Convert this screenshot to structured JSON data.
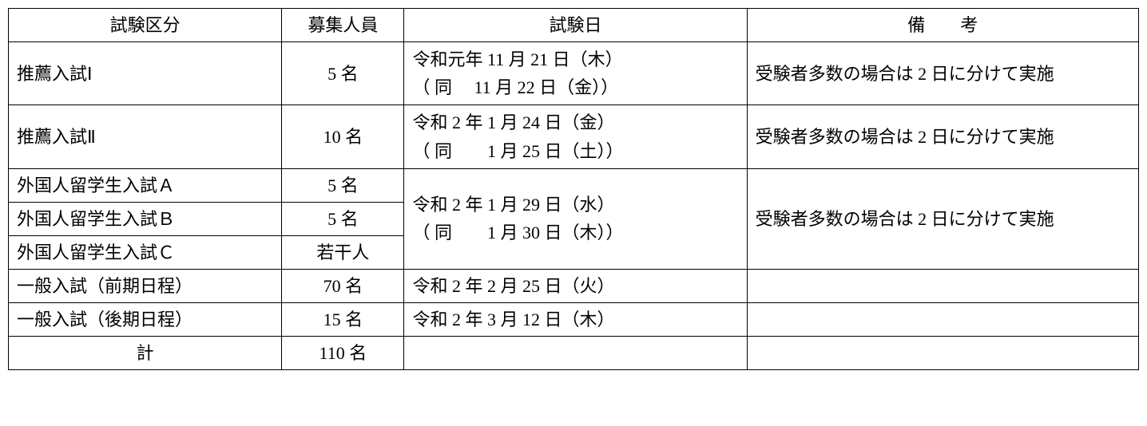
{
  "headers": {
    "category": "試験区分",
    "capacity": "募集人員",
    "date": "試験日",
    "notes": "備　　考"
  },
  "rows": {
    "r1": {
      "category": "推薦入試Ⅰ",
      "capacity": "5 名",
      "date_line1": "令和元年 11 月 21 日（木）",
      "date_line2": "（ 同　 11 月 22 日（金））",
      "notes": "受験者多数の場合は 2 日に分けて実施"
    },
    "r2": {
      "category": "推薦入試Ⅱ",
      "capacity": "10 名",
      "date_line1": "令和 2 年 1 月 24 日（金）",
      "date_line2": "（ 同　　1 月 25 日（土））",
      "notes": "受験者多数の場合は 2 日に分けて実施"
    },
    "r3": {
      "category": "外国人留学生入試Ａ",
      "capacity": "5 名"
    },
    "r4": {
      "category": "外国人留学生入試Ｂ",
      "capacity": "5 名",
      "date_line1": "令和 2 年 1 月 29 日（水）",
      "date_line2": "（ 同　　1 月 30 日（木））",
      "notes": "受験者多数の場合は 2 日に分けて実施"
    },
    "r5": {
      "category": "外国人留学生入試Ｃ",
      "capacity": "若干人"
    },
    "r6": {
      "category": "一般入試（前期日程）",
      "capacity": "70 名",
      "date": "令和 2 年 2 月 25 日（火）",
      "notes": ""
    },
    "r7": {
      "category": "一般入試（後期日程）",
      "capacity": "15 名",
      "date": "令和 2 年 3 月 12 日（木）",
      "notes": ""
    },
    "total": {
      "category": "計",
      "capacity": "110 名",
      "date": "",
      "notes": ""
    }
  },
  "style": {
    "font_family": "MS Mincho",
    "font_size_pt": 16,
    "border_color": "#000000",
    "background_color": "#ffffff",
    "text_color": "#000000"
  }
}
